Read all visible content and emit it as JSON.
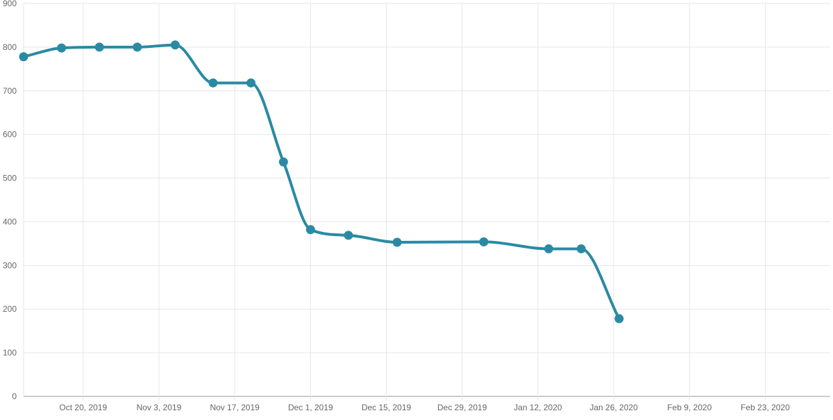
{
  "chart_data": {
    "type": "line",
    "title": "",
    "xlabel": "",
    "ylabel": "",
    "grid": true,
    "legend": "none",
    "ylim": [
      0,
      900
    ],
    "y_ticks": [
      0,
      100,
      200,
      300,
      400,
      500,
      600,
      700,
      800,
      900
    ],
    "xlim": [
      "2019-10-09",
      "2020-03-06"
    ],
    "x_ticks": [
      {
        "date": "2019-10-20",
        "label": "Oct 20, 2019"
      },
      {
        "date": "2019-11-03",
        "label": "Nov 3, 2019"
      },
      {
        "date": "2019-11-17",
        "label": "Nov 17, 2019"
      },
      {
        "date": "2019-12-01",
        "label": "Dec 1, 2019"
      },
      {
        "date": "2019-12-15",
        "label": "Dec 15, 2019"
      },
      {
        "date": "2019-12-29",
        "label": "Dec 29, 2019"
      },
      {
        "date": "2020-01-12",
        "label": "Jan 12, 2020"
      },
      {
        "date": "2020-01-26",
        "label": "Jan 26, 2020"
      },
      {
        "date": "2020-02-09",
        "label": "Feb 9, 2020"
      },
      {
        "date": "2020-02-23",
        "label": "Feb 23, 2020"
      }
    ],
    "series": [
      {
        "color": "#2a8aa4",
        "points": [
          {
            "x": "2019-10-09",
            "y": 778
          },
          {
            "x": "2019-10-16",
            "y": 798
          },
          {
            "x": "2019-10-23",
            "y": 800
          },
          {
            "x": "2019-10-30",
            "y": 800
          },
          {
            "x": "2019-11-06",
            "y": 805
          },
          {
            "x": "2019-11-13",
            "y": 718
          },
          {
            "x": "2019-11-20",
            "y": 718
          },
          {
            "x": "2019-11-26",
            "y": 537
          },
          {
            "x": "2019-12-01",
            "y": 382
          },
          {
            "x": "2019-12-08",
            "y": 369
          },
          {
            "x": "2019-12-17",
            "y": 353
          },
          {
            "x": "2020-01-02",
            "y": 354
          },
          {
            "x": "2020-01-14",
            "y": 338
          },
          {
            "x": "2020-01-20",
            "y": 338
          },
          {
            "x": "2020-01-27",
            "y": 178
          }
        ]
      }
    ]
  },
  "colors": {
    "grid": "#e6e6e6",
    "axis": "#999999",
    "tick_text": "#666666",
    "series": "#2a8aa4"
  }
}
